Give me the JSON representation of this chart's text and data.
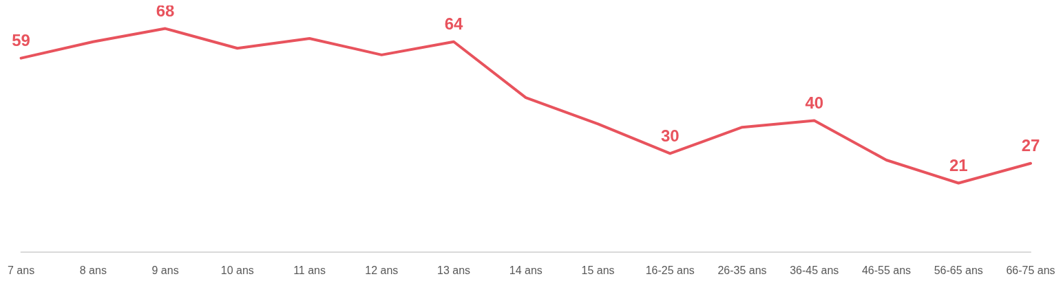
{
  "chart_data": {
    "type": "line",
    "categories": [
      "7 ans",
      "8 ans",
      "9 ans",
      "10 ans",
      "11 ans",
      "12 ans",
      "13 ans",
      "14 ans",
      "15 ans",
      "16-25 ans",
      "26-35 ans",
      "36-45 ans",
      "46-55 ans",
      "56-65 ans",
      "66-75 ans"
    ],
    "series": [
      {
        "color": "#e8535d",
        "values": [
          59,
          64,
          68,
          62,
          65,
          60,
          64,
          47,
          39,
          30,
          38,
          40,
          28,
          21,
          27
        ],
        "value_labels": [
          "59",
          null,
          "68",
          null,
          null,
          null,
          "64",
          null,
          null,
          "30",
          null,
          "40",
          null,
          "21",
          "27"
        ]
      }
    ],
    "grid": false,
    "marker": "none",
    "line_style": "solid"
  }
}
